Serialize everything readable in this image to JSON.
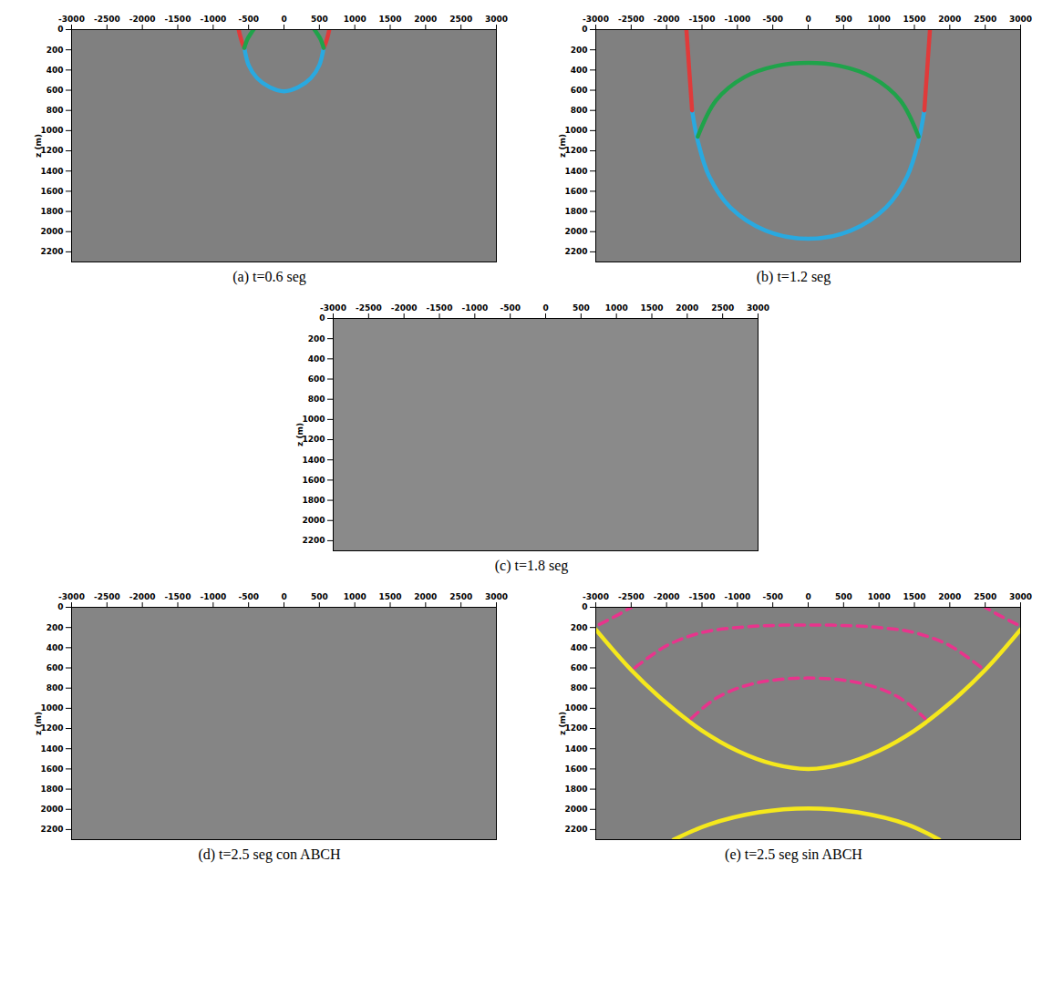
{
  "chart_data": [
    {
      "type": "line",
      "caption": "(a) t=0.6 seg",
      "ylabel": "z (m)",
      "color": "#808080",
      "xlim": [
        -3000,
        3000
      ],
      "xticks": [
        -3000,
        -2500,
        -2000,
        -1500,
        -1000,
        -500,
        0,
        500,
        1000,
        1500,
        2000,
        2500,
        3000
      ],
      "ylim": [
        0,
        2300
      ],
      "yticks": [
        0,
        200,
        400,
        600,
        800,
        1000,
        1200,
        1400,
        1600,
        1800,
        2000,
        2200
      ],
      "series": [
        {
          "color": "#29a9e0",
          "line_style": "solid",
          "x": [
            -560,
            -500,
            -380,
            -200,
            0,
            200,
            380,
            500,
            560
          ],
          "values": [
            180,
            350,
            480,
            570,
            610,
            570,
            480,
            350,
            180
          ]
        },
        {
          "color": "#e03a3a",
          "line_style": "solid",
          "x": [
            -640,
            -620,
            -590,
            -560
          ],
          "values": [
            0,
            60,
            130,
            180
          ]
        },
        {
          "color": "#e03a3a",
          "line_style": "solid",
          "x": [
            640,
            620,
            590,
            560
          ],
          "values": [
            0,
            60,
            130,
            180
          ]
        },
        {
          "color": "#1fa34a",
          "line_style": "solid",
          "x": [
            -560,
            -520,
            -470,
            -430
          ],
          "values": [
            180,
            100,
            40,
            0
          ]
        },
        {
          "color": "#1fa34a",
          "line_style": "solid",
          "x": [
            560,
            520,
            470,
            430
          ],
          "values": [
            180,
            100,
            40,
            0
          ]
        }
      ]
    },
    {
      "type": "line",
      "caption": "(b) t=1.2 seg",
      "ylabel": "z (m)",
      "color": "#808080",
      "xlim": [
        -3000,
        3000
      ],
      "xticks": [
        -3000,
        -2500,
        -2000,
        -1500,
        -1000,
        -500,
        0,
        500,
        1000,
        1500,
        2000,
        2500,
        3000
      ],
      "ylim": [
        0,
        2300
      ],
      "yticks": [
        0,
        200,
        400,
        600,
        800,
        1000,
        1200,
        1400,
        1600,
        1800,
        2000,
        2200
      ],
      "series": [
        {
          "color": "#29a9e0",
          "line_style": "solid",
          "x": [
            -1640,
            -1560,
            -1400,
            -1100,
            -600,
            0,
            600,
            1100,
            1400,
            1560,
            1640
          ],
          "values": [
            800,
            1100,
            1450,
            1760,
            1990,
            2070,
            1990,
            1760,
            1450,
            1100,
            800
          ]
        },
        {
          "color": "#e03a3a",
          "line_style": "solid",
          "x": [
            -1720,
            -1700,
            -1680,
            -1660,
            -1640
          ],
          "values": [
            0,
            200,
            400,
            600,
            800
          ]
        },
        {
          "color": "#e03a3a",
          "line_style": "solid",
          "x": [
            1720,
            1700,
            1680,
            1660,
            1640
          ],
          "values": [
            0,
            200,
            400,
            600,
            800
          ]
        },
        {
          "color": "#1fa34a",
          "line_style": "solid",
          "x": [
            -1560,
            -1300,
            -900,
            -450,
            0,
            450,
            900,
            1300,
            1560
          ],
          "values": [
            1060,
            700,
            470,
            360,
            330,
            360,
            470,
            700,
            1060
          ]
        }
      ]
    },
    {
      "type": "line",
      "caption": "(c) t=1.8 seg",
      "ylabel": "z (m)",
      "color": "#8a8a8a",
      "xlim": [
        -3000,
        3000
      ],
      "xticks": [
        -3000,
        -2500,
        -2000,
        -1500,
        -1000,
        -500,
        0,
        500,
        1000,
        1500,
        2000,
        2500,
        3000
      ],
      "ylim": [
        0,
        2300
      ],
      "yticks": [
        0,
        200,
        400,
        600,
        800,
        1000,
        1200,
        1400,
        1600,
        1800,
        2000,
        2200
      ],
      "series": []
    },
    {
      "type": "line",
      "caption": "(d) t=2.5 seg con ABCH",
      "ylabel": "z (m)",
      "color": "#858585",
      "xlim": [
        -3000,
        3000
      ],
      "xticks": [
        -3000,
        -2500,
        -2000,
        -1500,
        -1000,
        -500,
        0,
        500,
        1000,
        1500,
        2000,
        2500,
        3000
      ],
      "ylim": [
        0,
        2300
      ],
      "yticks": [
        0,
        200,
        400,
        600,
        800,
        1000,
        1200,
        1400,
        1600,
        1800,
        2000,
        2200
      ],
      "series": []
    },
    {
      "type": "line",
      "caption": "(e) t=2.5 seg sin ABCH",
      "ylabel": "z (m)",
      "color": "#808080",
      "xlim": [
        -3000,
        3000
      ],
      "xticks": [
        -3000,
        -2500,
        -2000,
        -1500,
        -1000,
        -500,
        0,
        500,
        1000,
        1500,
        2000,
        2500,
        3000
      ],
      "ylim": [
        0,
        2300
      ],
      "yticks": [
        0,
        200,
        400,
        600,
        800,
        1000,
        1200,
        1400,
        1600,
        1800,
        2000,
        2200
      ],
      "series": [
        {
          "color": "#f5e81c",
          "line_style": "solid",
          "x": [
            -3000,
            -2500,
            -2000,
            -1500,
            -1000,
            -500,
            0,
            500,
            1000,
            1500,
            2000,
            2500,
            3000
          ],
          "values": [
            220,
            620,
            950,
            1220,
            1420,
            1550,
            1600,
            1550,
            1420,
            1220,
            950,
            620,
            220
          ]
        },
        {
          "color": "#f5e81c",
          "line_style": "solid",
          "x": [
            -1900,
            -1400,
            -700,
            0,
            700,
            1400,
            1850
          ],
          "values": [
            2300,
            2150,
            2030,
            1990,
            2030,
            2150,
            2300
          ]
        },
        {
          "color": "#e8348c",
          "line_style": "dashed",
          "x": [
            -2450,
            -2000,
            -1500,
            -1000,
            -500,
            0,
            500,
            1000,
            1500,
            2000,
            2450
          ],
          "values": [
            600,
            380,
            250,
            200,
            180,
            175,
            180,
            200,
            250,
            380,
            600
          ]
        },
        {
          "color": "#e8348c",
          "line_style": "dashed",
          "x": [
            -1650,
            -1300,
            -800,
            0,
            800,
            1300,
            1650
          ],
          "values": [
            1100,
            900,
            760,
            700,
            760,
            900,
            1100
          ]
        },
        {
          "color": "#e8348c",
          "line_style": "dashed",
          "x": [
            -2950,
            -2700,
            -2500
          ],
          "values": [
            170,
            80,
            0
          ]
        },
        {
          "color": "#e8348c",
          "line_style": "dashed",
          "x": [
            2950,
            2700,
            2500
          ],
          "values": [
            170,
            80,
            0
          ]
        }
      ]
    }
  ]
}
